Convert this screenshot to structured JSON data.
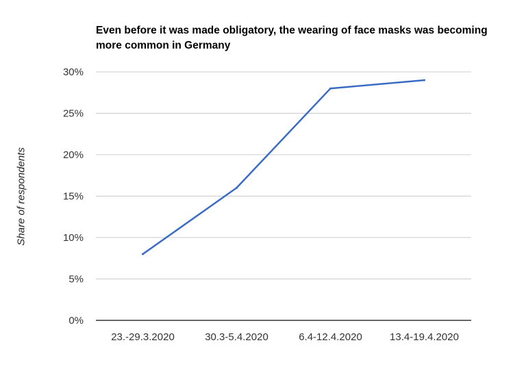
{
  "chart_data": {
    "type": "line",
    "title": "Even before it was made obligatory, the wearing of face masks was becoming more common in Germany",
    "xlabel": "",
    "ylabel": "Share of respondents",
    "categories": [
      "23.-29.3.2020",
      "30.3-5.4.2020",
      "6.4-12.4.2020",
      "13.4-19.4.2020"
    ],
    "series": [
      {
        "values": [
          8,
          16,
          28,
          29
        ],
        "color": "#3a6bc4"
      }
    ],
    "ylim": [
      0,
      30
    ],
    "yticks": [
      0,
      5,
      10,
      15,
      20,
      25,
      30
    ],
    "ytick_labels": [
      "0%",
      "5%",
      "10%",
      "15%",
      "20%",
      "25%",
      "30%"
    ],
    "grid": true,
    "legend": "none"
  }
}
